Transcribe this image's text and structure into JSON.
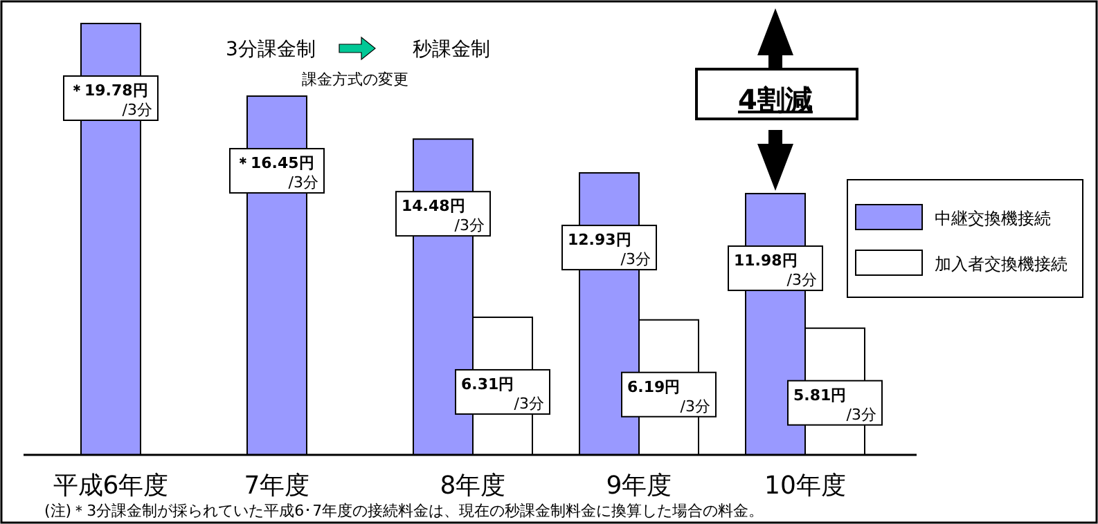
{
  "chart_data": {
    "type": "bar",
    "categories": [
      "平成6年度",
      "7年度",
      "8年度",
      "9年度",
      "10年度"
    ],
    "legend": "right",
    "series": [
      {
        "name": "中継交換機接続",
        "color": "#9999ff",
        "values": [
          19.78,
          16.45,
          14.48,
          12.93,
          11.98
        ],
        "value_labels": [
          "＊19.78円 /3分",
          "＊16.45円 /3分",
          "14.48円 /3分",
          "12.93円 /3分",
          "11.98円 /3分"
        ]
      },
      {
        "name": "加入者交換機接続",
        "color": "#ffffff",
        "values": [
          null,
          null,
          6.31,
          6.19,
          5.81
        ],
        "value_labels": [
          null,
          null,
          "6.31円 /3分",
          "6.19円 /3分",
          "5.81円 /3分"
        ]
      }
    ],
    "annotations": [
      "3分課金制",
      "秒課金制",
      "課金方式の変更",
      "4割減",
      "(注)＊3分課金制が採られていた平成6･7年度の接続料金は、現在の秒課金制料金に換算した場合の料金。"
    ]
  }
}
